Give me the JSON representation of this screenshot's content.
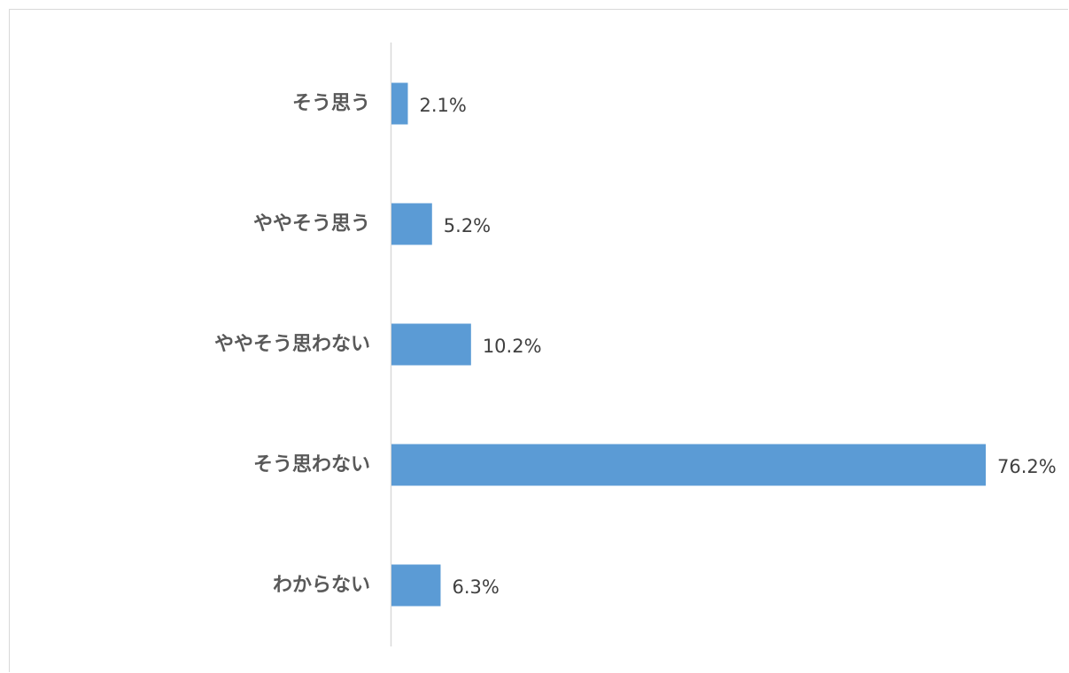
{
  "chart_data": {
    "type": "bar",
    "orientation": "horizontal",
    "categories": [
      "そう思う",
      "ややそう思う",
      "ややそう思わない",
      "そう思わない",
      "わからない"
    ],
    "values": [
      2.1,
      5.2,
      10.2,
      76.2,
      6.3
    ],
    "data_labels": [
      "2.1%",
      "5.2%",
      "10.2%",
      "76.2%",
      "6.3%"
    ],
    "unit": "%",
    "title": "",
    "xlabel": "",
    "ylabel": "",
    "xlim": [
      0,
      76.2
    ],
    "grid": false,
    "legend": "none",
    "bar_color": "#5b9bd5",
    "axis_color": "#d9d9d9"
  }
}
